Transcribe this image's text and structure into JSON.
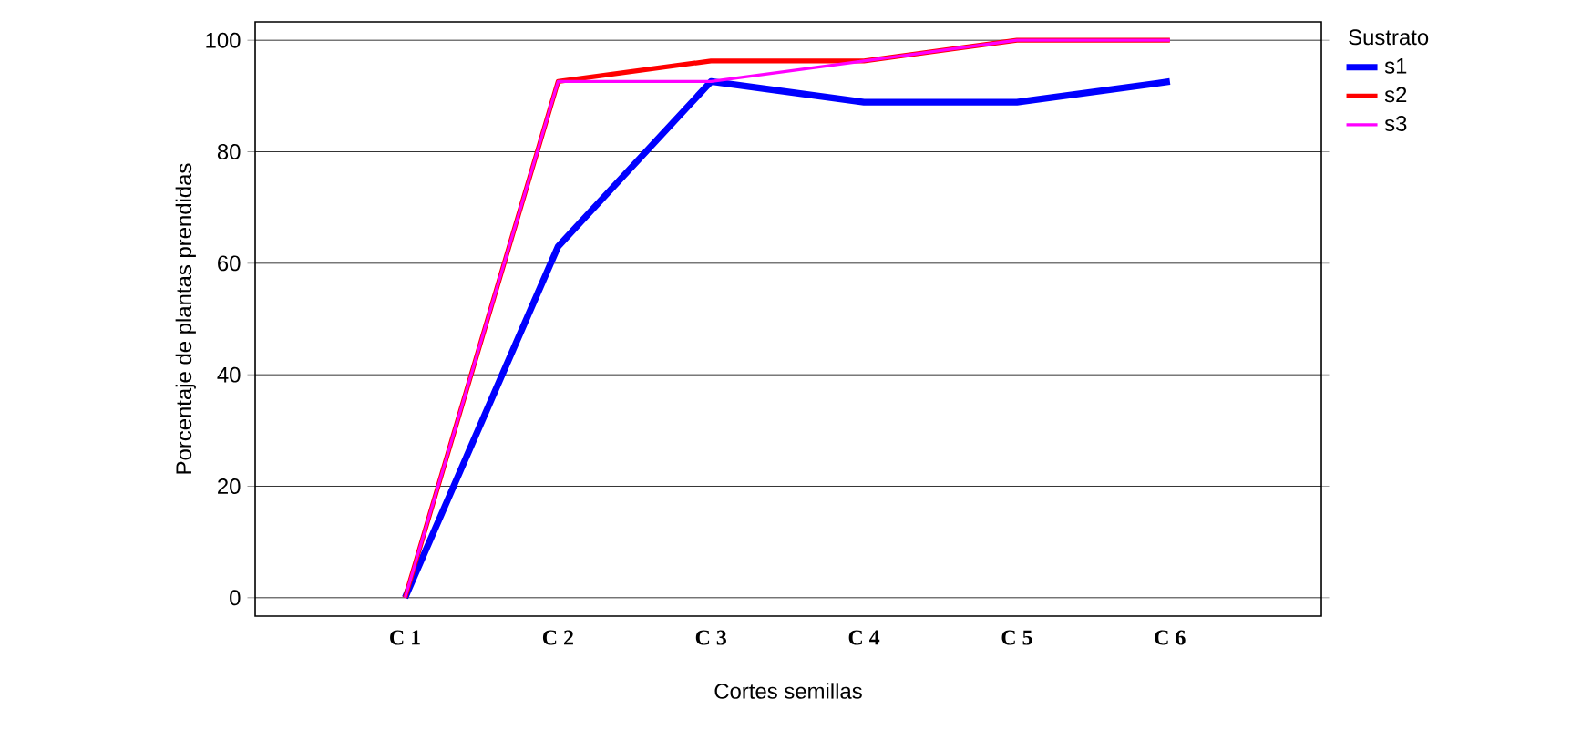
{
  "chart_data": {
    "type": "line",
    "xlabel": "Cortes semillas",
    "ylabel": "Porcentaje de plantas prendidas",
    "legend_title": "Sustrato",
    "categories": [
      "C 1",
      "C 2",
      "C 3",
      "C 4",
      "C 5",
      "C 6"
    ],
    "series": [
      {
        "name": "s1",
        "color": "#0000ff",
        "values": [
          0,
          63,
          92.6,
          88.9,
          88.9,
          92.6
        ]
      },
      {
        "name": "s2",
        "color": "#ff0000",
        "values": [
          0,
          92.6,
          96.3,
          96.3,
          100,
          100
        ]
      },
      {
        "name": "s3",
        "color": "#ff00ff",
        "values": [
          0,
          92.6,
          92.6,
          96.3,
          100,
          100
        ]
      }
    ],
    "ylim": [
      -3.3,
      103.3
    ],
    "yticks": [
      0,
      20,
      40,
      60,
      80,
      100
    ],
    "grid": "y",
    "legend": "top right",
    "line_style": "solid"
  }
}
